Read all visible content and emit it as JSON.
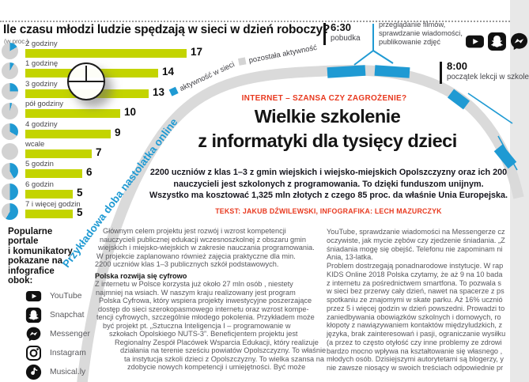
{
  "colors": {
    "bar_green": "#c3d400",
    "blue": "#1f9ad3",
    "ring_gray": "#dadada",
    "pie_gray": "#d2d2d2",
    "red": "#e8391f",
    "body_gray": "#57575c"
  },
  "chart_data": {
    "type": "bar",
    "orientation": "horizontal",
    "title": "Ile czasu młodzi ludzie spędzają w sieci w dzień roboczy?",
    "units": "(w proc.)",
    "categories": [
      "2 godziny",
      "1 godzinę",
      "3 godziny",
      "pół godziny",
      "4 godziny",
      "wcale",
      "5 godzin",
      "6 godzin",
      "7 i więcej godzin"
    ],
    "values": [
      17,
      14,
      13,
      10,
      9,
      7,
      6,
      5,
      5
    ],
    "clock_hours": [
      2,
      1,
      3,
      0.5,
      4,
      0,
      5,
      6,
      7
    ],
    "value_labels": true,
    "grid": false
  },
  "ring": {
    "diagonal_title": "Przykładowa doba nastolatka online",
    "legend_online": "aktywność w sieci",
    "legend_other": "pozostała aktywność",
    "event1_time": "6:30",
    "event1_label": "pobudka",
    "event2_time": "8:00",
    "event2_label": "początek lekcji w szkole",
    "activity_note_lines": [
      "przeglądanie filmów,",
      "sprawdzanie wiadomości,",
      "publikowanie zdjęć"
    ],
    "activity_note_icons": [
      "youtube-icon",
      "snapchat-icon",
      "messenger-icon"
    ]
  },
  "article": {
    "kicker": "INTERNET – SZANSA CZY ZAGROŻENIE?",
    "headline_line1": "Wielkie szkolenie",
    "headline_line2": "z informatyki dla tysięcy dzieci",
    "lead_lines": [
      "2200 uczniów z klas 1–3 z gmin wiejskich i wiejsko-miejskich Opolszczyzny oraz ich 200",
      "nauczycieli jest szkolonych z programowania. To dzięki funduszom unijnym.",
      "Wszystko ma kosztować 1,325 mln złotych z czego 85 proc. da właśnie Unia Europejska."
    ],
    "credit": "TEKST: JAKUB DŹWILEWSKI, INFOGRAFIKA: LECH MAZURCZYK"
  },
  "sidebar": {
    "intro_lines": [
      "Popularne",
      "portale",
      "i komunikatory",
      "pokazane na",
      "infografice",
      "obok:"
    ],
    "apps": [
      {
        "name": "YouTube",
        "icon": "youtube-icon"
      },
      {
        "name": "Snapchat",
        "icon": "snapchat-icon"
      },
      {
        "name": "Messenger",
        "icon": "messenger-icon"
      },
      {
        "name": "Instagram",
        "icon": "instagram-icon"
      },
      {
        "name": "Musical.ly",
        "icon": "musically-icon"
      }
    ]
  },
  "body_text": {
    "left_column": [
      {
        "text": "Głównym celem projektu jest rozwój i wzrost kompetencji",
        "indent": 10
      },
      {
        "text": "nauczycieli publicznej edukacji wczesnoszkolnej z obszaru gmin",
        "indent": 6
      },
      {
        "text": "wiejskich i miejsko-wiejskich w zakresie nauczania programowania.",
        "indent": 4
      },
      {
        "text": "W projekcie zaplanowano również zajęcia praktyczne dla min.",
        "indent": 2
      },
      {
        "text": "2200 uczniów klas 1–3 publicznych szkół podstawowych.",
        "indent": 0
      },
      {
        "text": "Polska rozwija się cyfrowo",
        "indent": 0,
        "bold": true,
        "gap": 4
      },
      {
        "text": "Z internetu w Polsce korzysta już około 27 mln osób , niestety",
        "indent": 0
      },
      {
        "text": "najmniej na wsiach. W naszym kraju realizowany jest program",
        "indent": 1
      },
      {
        "text": "Polska Cyfrowa, który wspiera projekty inwestycyjne poszerzające",
        "indent": 5
      },
      {
        "text": "dostęp do sieci szerokopasmowego internetu oraz wzrost kompe-",
        "indent": 4
      },
      {
        "text": "tencji cyfrowych, szczególnie młodego pokolenia. Przykładem może",
        "indent": 2
      },
      {
        "text": "być projekt pt. „Sztuczna Inteligencja I – programowanie w",
        "indent": 10
      },
      {
        "text": "szkołach Opolskiego NUTS-3”. Beneficjentem projektu jest",
        "indent": 18
      },
      {
        "text": "Regionalny Zespół Placówek Wsparcia Edukacji, który realizuje",
        "indent": 25
      },
      {
        "text": "działania na terenie sześciu powiatów Opolszczyzny. To właśnie",
        "indent": 32
      },
      {
        "text": "ta instytucja szkoli dzieci z Opolszczyzny. To wielka szansa na",
        "indent": 37
      },
      {
        "text": "zdobycie nowych kompetencji i umiejętności. Być może",
        "indent": 41
      }
    ],
    "right_column": [
      "YouTube, sprawdzanie wiadomości na Messengerze cz",
      "oczywiste, jak mycie zębów czy zjedzenie śniadania. „Z",
      "śniadania mogę się obejść. Telefonu nie zapominam ni",
      "Ania, 13-latka.",
      "Problem dostrzegają ponadnarodowe instytucje. W rap",
      "KIDS Online 2018 Polska czytamy, że aż 9 na 10 bada",
      "z internetu za pośrednictwem smartfona. To pozwala s",
      "w sieci bez przerwy cały dzień, nawet na spacerze z ps",
      "spotkaniu ze znajomymi w skate parku. Aż 16% ucznió",
      "przez 5 i więcej godzin w dzień powszedni. Prowadzi to",
      "zaniedbywania obowiązków szkolnych i domowych, ro",
      "kłopoty z nawiązywaniem kontaktów międzyludzkich, z",
      "języka, brak zainteresowań i pasji, ograniczanie wysiłku",
      "(a przez to często otyłość czy inne problemy ze zdrowi",
      "bardzo mocno wpływa na kształtowanie się własnego ,",
      "młodych osób. Dzisiejszymi autorytetami są blogerzy, y",
      "nie zawsze niosący w swoich treściach odpowiednie pr"
    ]
  }
}
